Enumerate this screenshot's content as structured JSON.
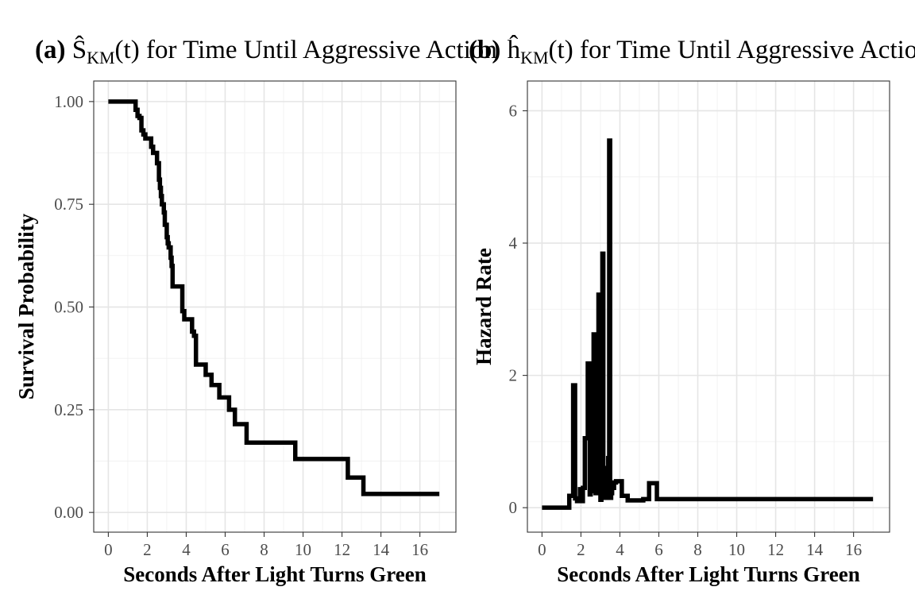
{
  "chart_data": [
    {
      "type": "line",
      "step": true,
      "panel_label": "(a)",
      "title_math": "Ŝ",
      "title_sub": "KM",
      "title_arg": "(t)",
      "title_rest": " for Time Until Aggressive Action",
      "xlabel": "Seconds After Light Turns Green",
      "ylabel": "Survival Probability",
      "xlim": [
        -0.75,
        17.85
      ],
      "ylim": [
        -0.048,
        1.05
      ],
      "x_ticks": [
        0,
        2,
        4,
        6,
        8,
        10,
        12,
        14,
        16
      ],
      "x_tick_labels": [
        "0",
        "2",
        "4",
        "6",
        "8",
        "10",
        "12",
        "14",
        "16"
      ],
      "y_ticks": [
        0,
        0.25,
        0.5,
        0.75,
        1.0
      ],
      "y_tick_labels": [
        "0.00",
        "0.25",
        "0.50",
        "0.75",
        "1.00"
      ],
      "grid": true,
      "line_color": "#000000",
      "series": [
        {
          "x": [
            0.0,
            1.4,
            1.5,
            1.6,
            1.7,
            1.8,
            1.9,
            2.2,
            2.3,
            2.5,
            2.6,
            2.65,
            2.7,
            2.75,
            2.8,
            2.85,
            2.9,
            3.0,
            3.05,
            3.1,
            3.2,
            3.25,
            3.3,
            3.4,
            3.8,
            3.9,
            4.2,
            4.3,
            4.4,
            4.5,
            5.0,
            5.3,
            5.7,
            6.0,
            6.2,
            6.5,
            7.1,
            8.3,
            9.6,
            11.0,
            12.3,
            13.1,
            15.0,
            17.0
          ],
          "y": [
            1.0,
            0.98,
            0.965,
            0.96,
            0.93,
            0.92,
            0.91,
            0.89,
            0.875,
            0.85,
            0.81,
            0.79,
            0.77,
            0.75,
            0.75,
            0.73,
            0.7,
            0.67,
            0.655,
            0.645,
            0.62,
            0.6,
            0.55,
            0.55,
            0.49,
            0.47,
            0.47,
            0.44,
            0.43,
            0.36,
            0.335,
            0.31,
            0.28,
            0.28,
            0.25,
            0.215,
            0.17,
            0.17,
            0.13,
            0.13,
            0.085,
            0.045,
            0.045,
            0.045
          ]
        }
      ]
    },
    {
      "type": "line",
      "step": true,
      "panel_label": "(b)",
      "title_math": "ĥ",
      "title_sub": "KM",
      "title_arg": "(t)",
      "title_rest": " for Time Until Aggressive Action",
      "xlabel": "Seconds After Light Turns Green",
      "ylabel": "Hazard Rate",
      "xlim": [
        -0.75,
        17.85
      ],
      "ylim": [
        -0.37,
        6.45
      ],
      "x_ticks": [
        0,
        2,
        4,
        6,
        8,
        10,
        12,
        14,
        16
      ],
      "x_tick_labels": [
        "0",
        "2",
        "4",
        "6",
        "8",
        "10",
        "12",
        "14",
        "16"
      ],
      "y_ticks": [
        0,
        2,
        4,
        6
      ],
      "y_tick_labels": [
        "0",
        "2",
        "4",
        "6"
      ],
      "grid": true,
      "line_color": "#000000",
      "series": [
        {
          "x": [
            0.0,
            1.4,
            1.6,
            1.7,
            1.8,
            1.95,
            2.05,
            2.1,
            2.2,
            2.35,
            2.45,
            2.5,
            2.55,
            2.6,
            2.65,
            2.7,
            2.75,
            2.8,
            2.85,
            2.9,
            2.95,
            3.0,
            3.05,
            3.1,
            3.15,
            3.2,
            3.25,
            3.3,
            3.35,
            3.4,
            3.45,
            3.5,
            3.55,
            3.6,
            3.7,
            3.8,
            4.1,
            4.3,
            4.4,
            4.5,
            4.6,
            4.8,
            5.2,
            5.5,
            5.9,
            6.0,
            6.4,
            7.2,
            9.6,
            10.0,
            12.3,
            13.1,
            16.0,
            17.0
          ],
          "y": [
            0.0,
            0.18,
            1.85,
            0.14,
            0.1,
            0.28,
            0.1,
            0.3,
            1.05,
            2.18,
            0.2,
            0.55,
            1.1,
            0.25,
            2.62,
            0.6,
            0.22,
            1.0,
            0.3,
            3.22,
            0.7,
            0.12,
            0.4,
            3.84,
            0.2,
            0.15,
            0.6,
            0.15,
            0.2,
            0.75,
            5.55,
            0.15,
            0.22,
            0.3,
            0.38,
            0.4,
            0.18,
            0.18,
            0.11,
            0.11,
            0.11,
            0.11,
            0.13,
            0.37,
            0.13,
            0.13,
            0.13,
            0.13,
            0.13,
            0.13,
            0.13,
            0.13,
            0.13,
            0.13
          ]
        }
      ]
    }
  ]
}
